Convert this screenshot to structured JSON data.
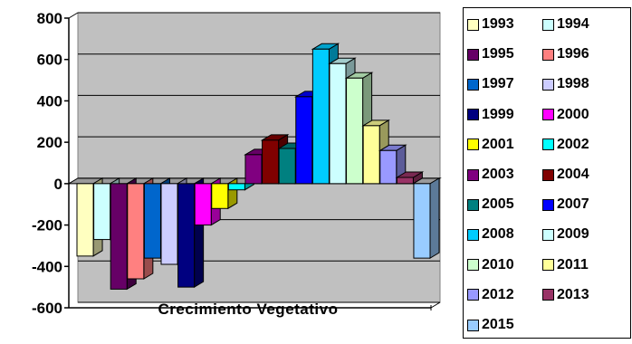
{
  "chart_data": {
    "type": "bar",
    "title": "",
    "xlabel": "Crecimiento Vegetativo",
    "ylabel": "",
    "ylim": [
      -600,
      800
    ],
    "yticks": [
      800,
      600,
      400,
      200,
      0,
      -200,
      -400,
      -600
    ],
    "ytick_labels": [
      "800",
      "600",
      "400",
      "200",
      "0",
      "-200",
      "-400",
      "-600"
    ],
    "grid": true,
    "style": "3d-bar",
    "plot_background": "#c0c0c0",
    "legend_position": "right",
    "series": [
      {
        "name": "1993",
        "value": -350,
        "color": "#ffffc0"
      },
      {
        "name": "1994",
        "value": -270,
        "color": "#ccffff"
      },
      {
        "name": "1995",
        "value": -510,
        "color": "#660066"
      },
      {
        "name": "1996",
        "value": -460,
        "color": "#ff8080"
      },
      {
        "name": "1997",
        "value": -360,
        "color": "#0066cc"
      },
      {
        "name": "1998",
        "value": -390,
        "color": "#ccccff"
      },
      {
        "name": "1999",
        "value": -500,
        "color": "#000080"
      },
      {
        "name": "2000",
        "value": -200,
        "color": "#ff00ff"
      },
      {
        "name": "2001",
        "value": -120,
        "color": "#ffff00"
      },
      {
        "name": "2002",
        "value": -30,
        "color": "#00ffff"
      },
      {
        "name": "2003",
        "value": 140,
        "color": "#800080"
      },
      {
        "name": "2004",
        "value": 210,
        "color": "#800000"
      },
      {
        "name": "2005",
        "value": 170,
        "color": "#008080"
      },
      {
        "name": "2007",
        "value": 420,
        "color": "#0000ff"
      },
      {
        "name": "2008",
        "value": 650,
        "color": "#00ccff"
      },
      {
        "name": "2009",
        "value": 580,
        "color": "#ccffff"
      },
      {
        "name": "2010",
        "value": 510,
        "color": "#ccffcc"
      },
      {
        "name": "2011",
        "value": 280,
        "color": "#ffff99"
      },
      {
        "name": "2012",
        "value": 160,
        "color": "#9999ff"
      },
      {
        "name": "2013",
        "value": 30,
        "color": "#993366"
      },
      {
        "name": "2015",
        "value": -360,
        "color": "#99ccff"
      }
    ]
  }
}
